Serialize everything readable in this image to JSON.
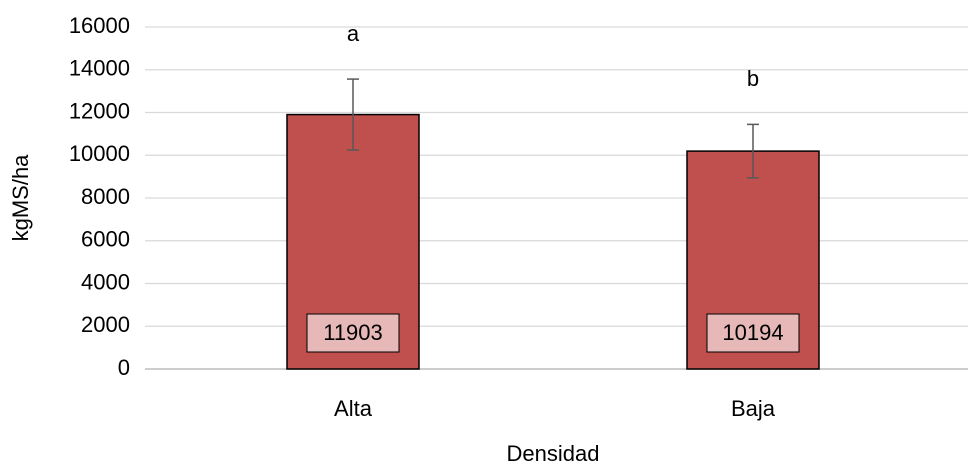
{
  "chart_data": {
    "type": "bar",
    "x_label": "Densidad",
    "y_label": "kgMS/ha",
    "categories": [
      "Alta",
      "Baja"
    ],
    "values": [
      11903,
      10194
    ],
    "errors": [
      1660,
      1250
    ],
    "annotations": [
      "a",
      "b"
    ],
    "color": "#c0504d",
    "label_box_color": "#e6b8b7",
    "ylim": [
      0,
      16000
    ],
    "yticks": [
      0,
      2000,
      4000,
      6000,
      8000,
      10000,
      12000,
      14000,
      16000
    ],
    "grid": true
  }
}
